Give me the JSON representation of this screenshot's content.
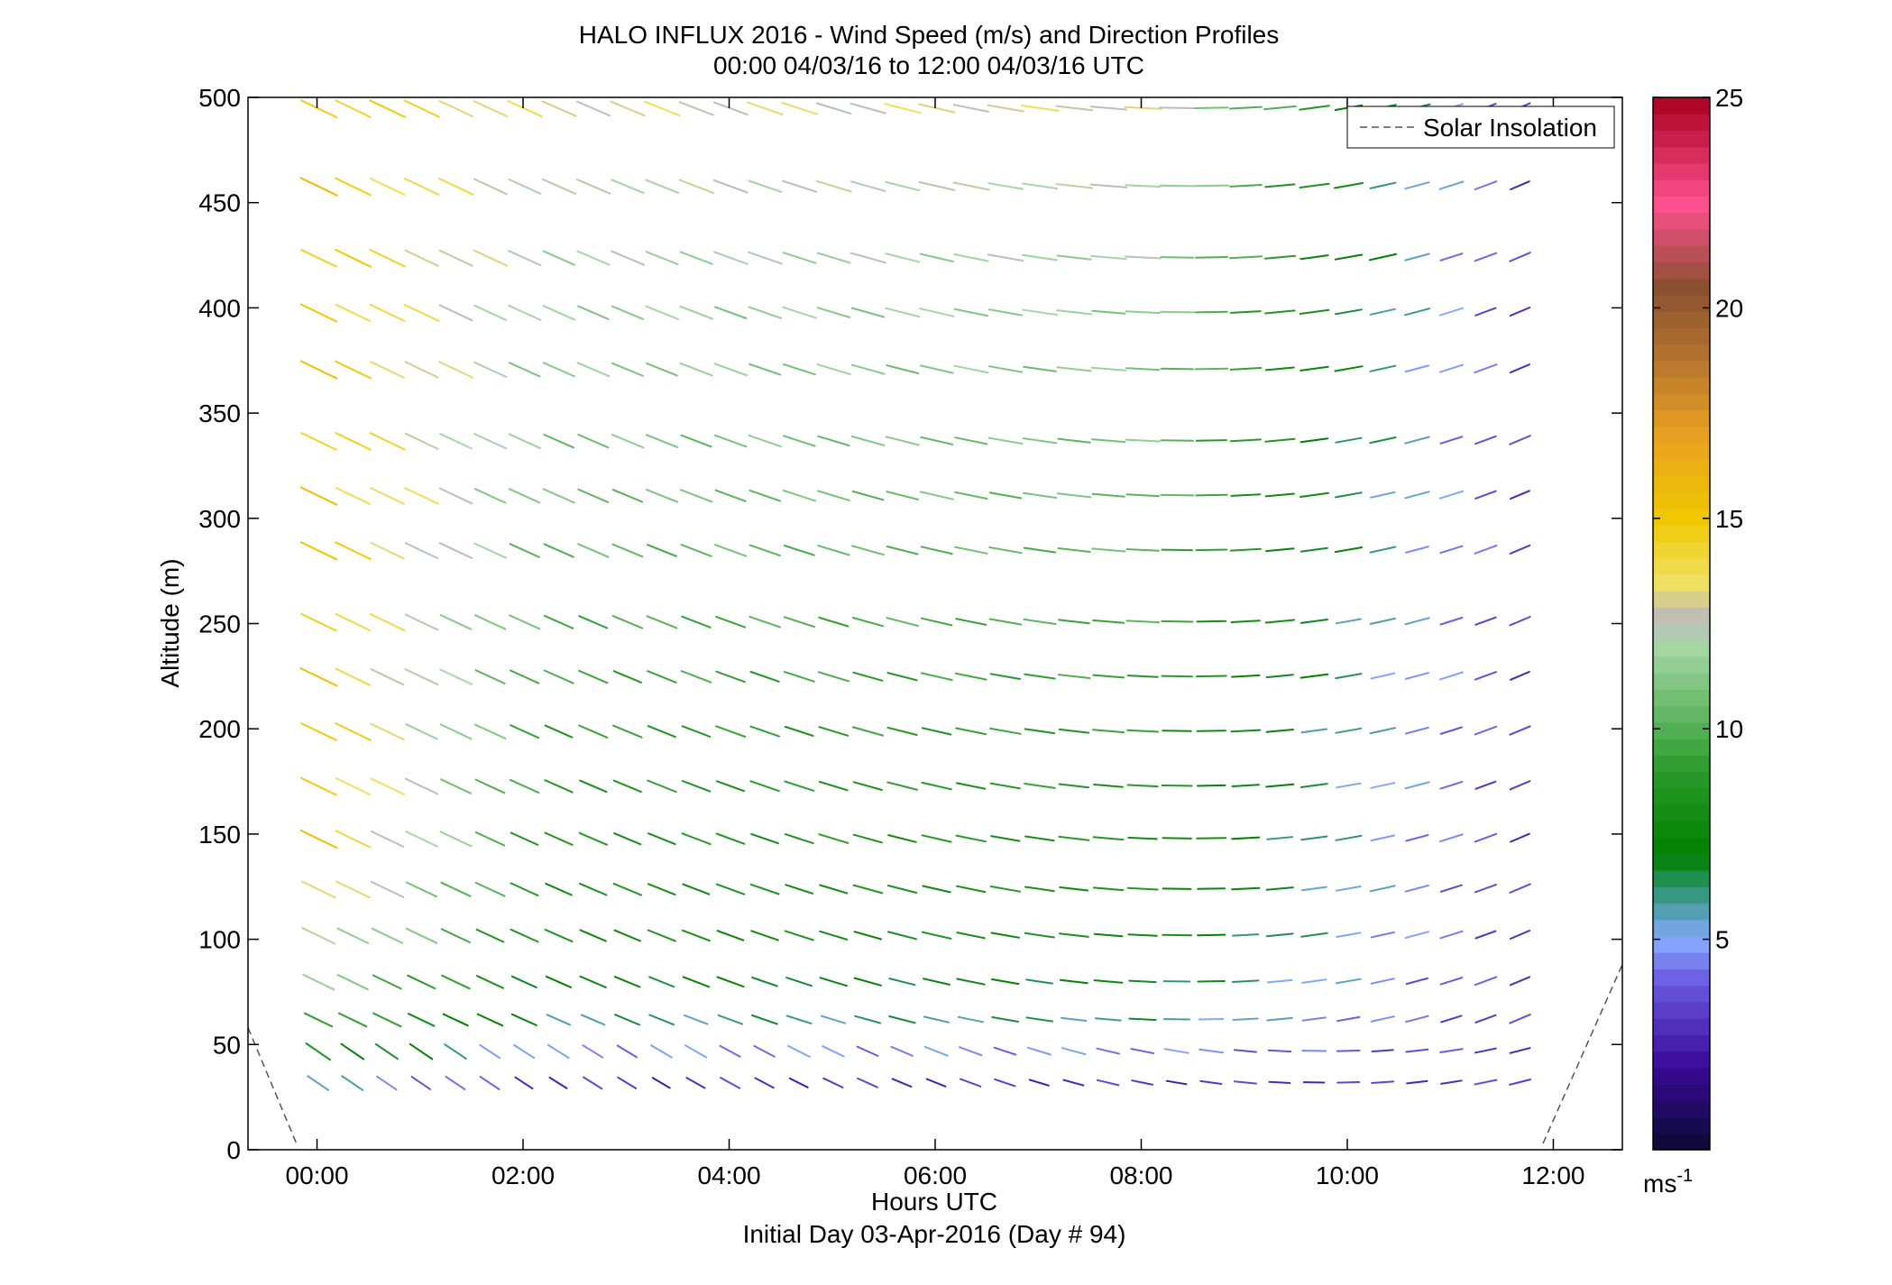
{
  "chart_data": {
    "type": "scatter",
    "title": "HALO INFLUX 2016 - Wind Speed (m/s) and Direction Profiles",
    "subtitle": "00:00 04/03/16 to 12:00 04/03/16  UTC",
    "xlabel": "Hours UTC",
    "xlabel2": "Initial Day 03-Apr-2016 (Day # 94)",
    "ylabel": "Altitude (m)",
    "xlim": [
      -0.67,
      12.67
    ],
    "ylim": [
      0,
      500
    ],
    "x_ticks": [
      0,
      2,
      4,
      6,
      8,
      10,
      12
    ],
    "x_tick_labels": [
      "00:00",
      "02:00",
      "04:00",
      "06:00",
      "08:00",
      "10:00",
      "12:00"
    ],
    "y_ticks": [
      0,
      50,
      100,
      150,
      200,
      250,
      300,
      350,
      400,
      450,
      500
    ],
    "y_tick_labels": [
      "0",
      "50",
      "100",
      "150",
      "200",
      "250",
      "300",
      "350",
      "400",
      "450",
      "500"
    ],
    "grid": false,
    "legend": {
      "placement": "top-right",
      "entries": [
        "Solar Insolation"
      ]
    },
    "solar_insolation": [
      {
        "x": -0.67,
        "y": 58
      },
      {
        "x": -0.2,
        "y": 3
      },
      {
        "x": 11.9,
        "y": 3
      },
      {
        "x": 12.67,
        "y": 88
      }
    ],
    "colorbar": {
      "range": [
        0,
        25
      ],
      "ticks": [
        5,
        10,
        15,
        20,
        25
      ],
      "tick_labels": [
        "5",
        "10",
        "15",
        "20",
        "25"
      ],
      "unit_label": "ms",
      "unit_exponent": "-1",
      "stops": [
        {
          "v": 0,
          "c": "#0a0a2e"
        },
        {
          "v": 2,
          "c": "#3a0a9a"
        },
        {
          "v": 4,
          "c": "#6a5ae0"
        },
        {
          "v": 5,
          "c": "#88aaff"
        },
        {
          "v": 6,
          "c": "#3a9a8a"
        },
        {
          "v": 7,
          "c": "#008000"
        },
        {
          "v": 9,
          "c": "#2a9a2a"
        },
        {
          "v": 12,
          "c": "#a8d8a8"
        },
        {
          "v": 12.6,
          "c": "#bbbbbb"
        },
        {
          "v": 13.5,
          "c": "#f0e060"
        },
        {
          "v": 15,
          "c": "#f0c800"
        },
        {
          "v": 17,
          "c": "#e8a020"
        },
        {
          "v": 19,
          "c": "#b07030"
        },
        {
          "v": 20.5,
          "c": "#8a5030"
        },
        {
          "v": 22.5,
          "c": "#ff5090"
        },
        {
          "v": 25,
          "c": "#a80020"
        }
      ]
    },
    "wind_field": {
      "times": [
        0,
        0.333,
        0.667,
        1,
        1.333,
        1.667,
        2,
        2.333,
        2.667,
        3,
        3.333,
        3.667,
        4,
        4.333,
        4.667,
        5,
        5.333,
        5.667,
        6,
        6.333,
        6.667,
        7,
        7.333,
        7.667,
        8,
        8.333,
        8.667,
        9,
        9.333,
        9.667,
        10,
        10.333,
        10.667,
        11,
        11.333,
        11.667
      ],
      "altitudes": [
        32,
        47,
        62,
        80,
        102,
        124,
        148,
        173,
        199,
        225,
        251,
        285,
        311,
        337,
        371,
        398,
        424,
        458,
        495
      ],
      "speed_profile": [
        {
          "altitude": 32,
          "speed": 3
        },
        {
          "altitude": 60,
          "speed": 6
        },
        {
          "altitude": 100,
          "speed": 8
        },
        {
          "altitude": 200,
          "speed": 9
        },
        {
          "altitude": 300,
          "speed": 10.5
        },
        {
          "altitude": 400,
          "speed": 11.5
        },
        {
          "altitude": 495,
          "speed": 13
        }
      ],
      "morning_speed_at_00": 15
    }
  }
}
